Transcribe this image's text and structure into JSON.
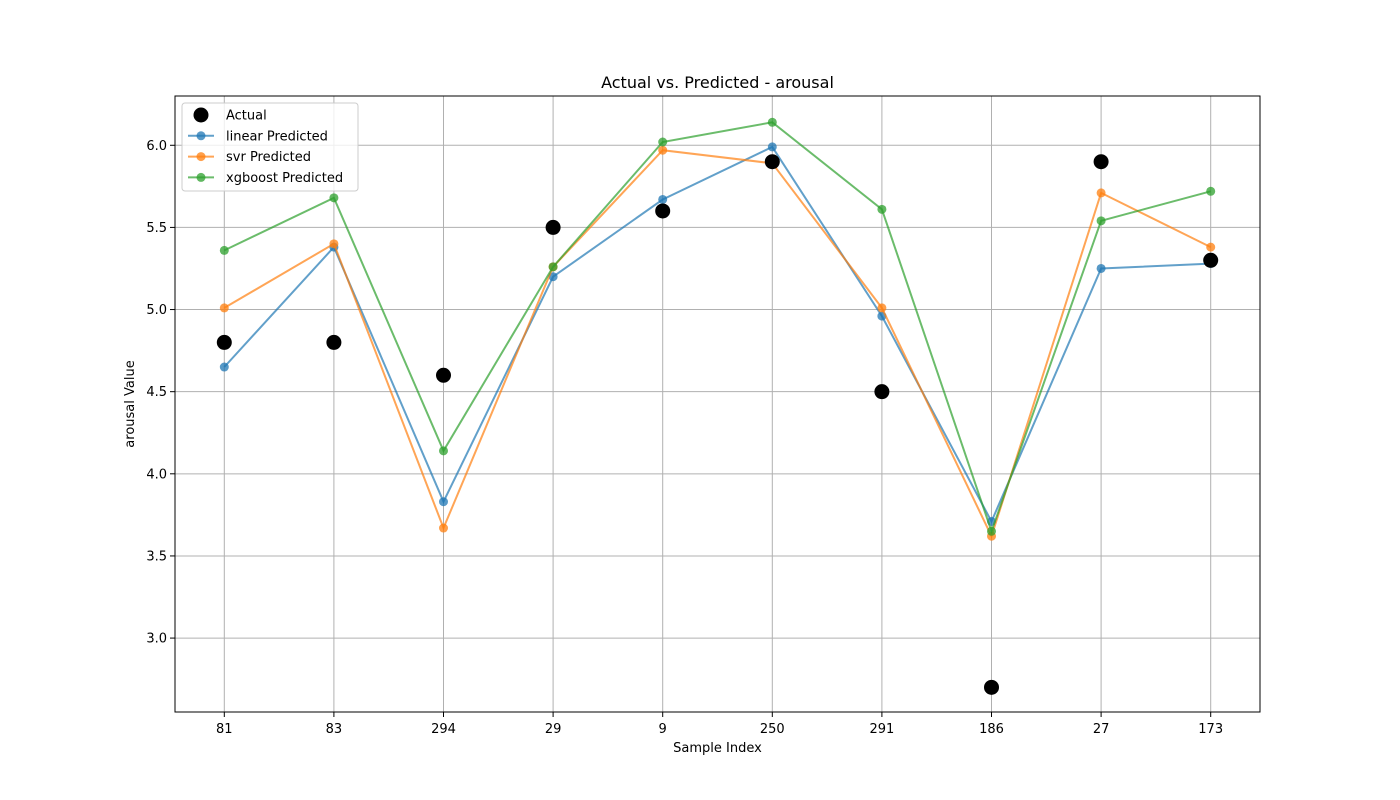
{
  "chart_data": {
    "type": "line",
    "title": "Actual vs. Predicted - arousal",
    "xlabel": "Sample Index",
    "ylabel": "arousal Value",
    "categories": [
      "81",
      "83",
      "294",
      "29",
      "9",
      "250",
      "291",
      "186",
      "27",
      "173"
    ],
    "ylim": [
      2.55,
      6.3
    ],
    "yticks": [
      "3.0",
      "3.5",
      "4.0",
      "4.5",
      "5.0",
      "5.5",
      "6.0"
    ],
    "grid": true,
    "legend_position": "upper-left",
    "series": [
      {
        "name": "Actual",
        "kind": "scatter",
        "color": "#000000",
        "values": [
          4.8,
          4.8,
          4.6,
          5.5,
          5.6,
          5.9,
          4.5,
          2.7,
          5.9,
          5.3
        ]
      },
      {
        "name": "linear Predicted",
        "kind": "line",
        "color": "#1f77b4",
        "values": [
          4.65,
          5.38,
          3.83,
          5.2,
          5.67,
          5.99,
          4.96,
          3.71,
          5.25,
          5.28
        ]
      },
      {
        "name": "svr Predicted",
        "kind": "line",
        "color": "#ff7f0e",
        "values": [
          5.01,
          5.4,
          3.67,
          5.26,
          5.97,
          5.89,
          5.01,
          3.62,
          5.71,
          5.38
        ]
      },
      {
        "name": "xgboost Predicted",
        "kind": "line",
        "color": "#2ca02c",
        "values": [
          5.36,
          5.68,
          4.14,
          5.26,
          6.02,
          6.14,
          5.61,
          3.65,
          5.54,
          5.72
        ]
      }
    ]
  }
}
